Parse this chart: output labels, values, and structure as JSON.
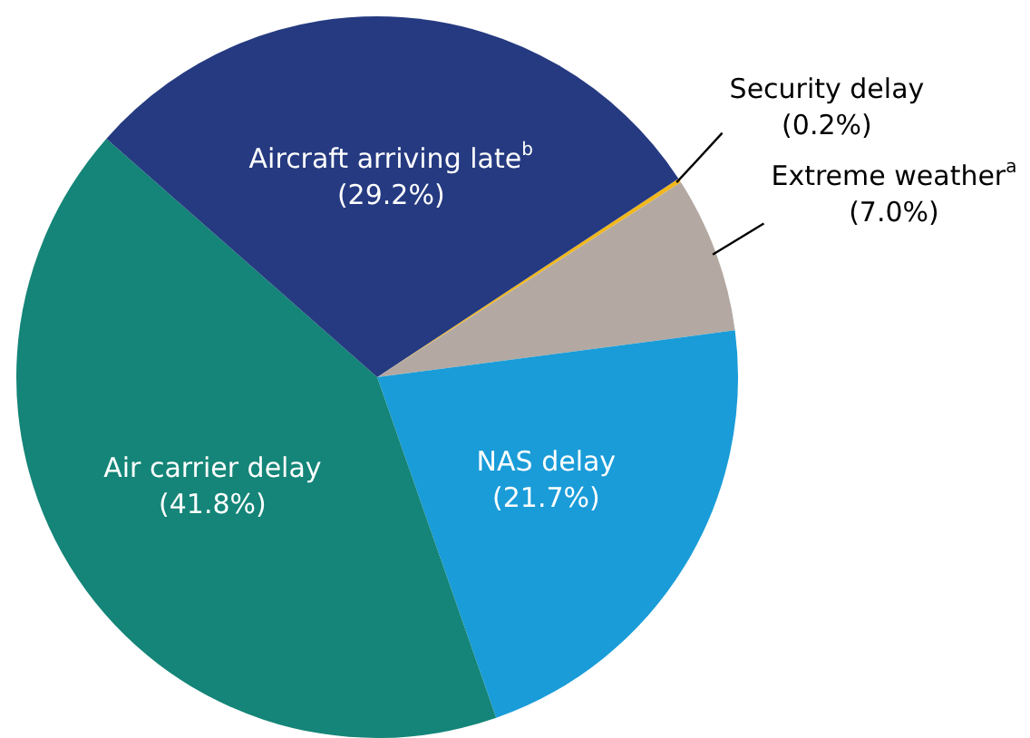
{
  "chart_data": {
    "type": "pie",
    "categories": [
      "Security delay",
      "Extreme weather$^{a}$",
      "NAS delay",
      "Air carrier delay",
      "Aircraft arriving late$^{b}$"
    ],
    "values": [
      0.2,
      7.0,
      21.7,
      41.8,
      29.2
    ],
    "value_labels": [
      "(0.2%)",
      "(7.0%)",
      "(21.7%)",
      "(41.8%)",
      "(29.2%)"
    ],
    "colors": [
      "#f2b71b",
      "#b3a9a2",
      "#1a9cd8",
      "#148578",
      "#253a80"
    ],
    "legend": false
  }
}
